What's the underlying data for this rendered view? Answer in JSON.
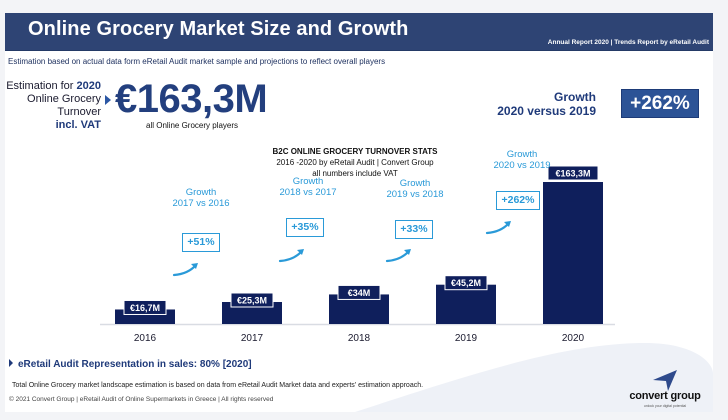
{
  "header": {
    "title": "Online Grocery Market Size and Growth",
    "report": "Annual Report 2020 | Trends Report by eRetail Audit"
  },
  "subtitle": "Estimation based on actual data form eRetail Audit market sample and projections to reflect overall players",
  "estimation": {
    "line1_prefix": "Estimation for ",
    "line1_year": "2020",
    "line2": "Online Grocery",
    "line3": "Turnover",
    "line4": "incl. VAT",
    "big_value": "€163,3M",
    "big_caption": "all Online Grocery players"
  },
  "growth_headline": {
    "line1": "Growth",
    "line2": "2020 versus 2019",
    "value": "+262%"
  },
  "chart_data": {
    "type": "bar",
    "title": "B2C ONLINE GROCERY TURNOVER STATS",
    "subtitle_1": "2016 -2020 by eRetail Audit | Convert Group",
    "subtitle_2": "all numbers include VAT",
    "categories": [
      "2016",
      "2017",
      "2018",
      "2019",
      "2020"
    ],
    "values": [
      16.7,
      25.3,
      34,
      45.2,
      163.3
    ],
    "value_labels": [
      "€16,7M",
      "€25,3M",
      "€34M",
      "€45,2M",
      "€163,3M"
    ],
    "unit": "€M",
    "ylim": [
      0,
      170
    ],
    "grid": false,
    "xlabel": "",
    "ylabel": "",
    "colors": {
      "bar": "#0f1f5c",
      "growth": "#2a9ad8"
    },
    "growth_annotations": [
      {
        "label": "Growth",
        "period": "2017 vs 2016",
        "value": "+51%"
      },
      {
        "label": "Growth",
        "period": "2018 vs 2017",
        "value": "+35%"
      },
      {
        "label": "Growth",
        "period": "2019 vs 2018",
        "value": "+33%"
      },
      {
        "label": "Growth",
        "period": "2020 vs 2019",
        "value": "+262%"
      }
    ]
  },
  "representation": "eRetail Audit Representation in sales: 80% [2020]",
  "note": "Total Online Grocery market landscape estimation is based on data from eRetail Audit Market data and experts' estimation approach.",
  "copyright": "© 2021 Convert Group | eRetail Audit of Online Supermarkets in Greece | All rights reserved",
  "logo": {
    "name": "convert group",
    "tagline": "unlock your digital potential",
    "color": "#2e4a8c"
  }
}
